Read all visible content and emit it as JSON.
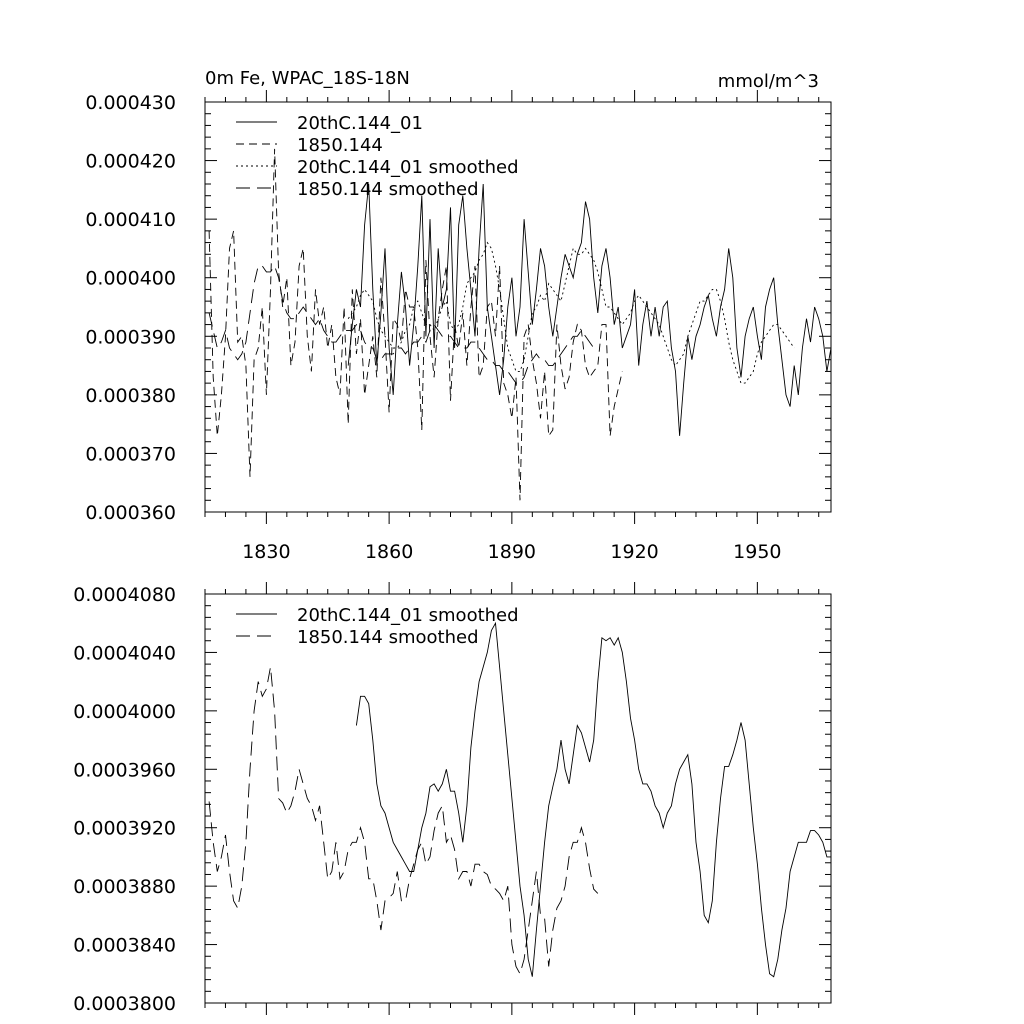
{
  "figure": {
    "background": "#ffffff",
    "line_color": "#000000"
  },
  "chart_data": [
    {
      "type": "line",
      "title_left": "0m Fe, WPAC_18S-18N",
      "title_right": "mmol/m^3",
      "xlabel": "",
      "ylabel": "",
      "xlim": [
        1815,
        1968
      ],
      "ylim": [
        0.00036,
        0.00043
      ],
      "xticks": [
        1830,
        1860,
        1890,
        1920,
        1950
      ],
      "yticks": [
        "0.000360",
        "0.000370",
        "0.000380",
        "0.000390",
        "0.000400",
        "0.000410",
        "0.000420",
        "0.000430"
      ],
      "legend_position": "top-left",
      "grid": false,
      "series": [
        {
          "name": "20thC.144_01",
          "dash": "solid",
          "x_start": 1850,
          "x_step": 1,
          "values": [
            0.000385,
            0.000392,
            0.000398,
            0.000395,
            0.000409,
            0.000416,
            0.000398,
            0.000385,
            0.000394,
            0.000405,
            0.000388,
            0.00038,
            0.000392,
            0.000401,
            0.000395,
            0.000385,
            0.000392,
            0.000402,
            0.000414,
            0.00039,
            0.00041,
            0.000388,
            0.000405,
            0.000395,
            0.000398,
            0.000412,
            0.000388,
            0.000409,
            0.000414,
            0.000405,
            0.000398,
            0.00039,
            0.000405,
            0.000416,
            0.000395,
            0.00039,
            0.000385,
            0.00038,
            0.000386,
            0.000395,
            0.0004,
            0.00039,
            0.000395,
            0.00041,
            0.000401,
            0.000392,
            0.000398,
            0.000405,
            0.000402,
            0.000395,
            0.00039,
            0.000395,
            0.0004,
            0.000404,
            0.000402,
            0.0004,
            0.000404,
            0.000406,
            0.000413,
            0.00041,
            0.0004,
            0.000394,
            0.000402,
            0.000405,
            0.0004,
            0.000392,
            0.000395,
            0.000388,
            0.00039,
            0.000392,
            0.000398,
            0.000385,
            0.000392,
            0.000396,
            0.00039,
            0.000395,
            0.00039,
            0.000395,
            0.000396,
            0.000388,
            0.000384,
            0.000373,
            0.000382,
            0.00039,
            0.000386,
            0.00039,
            0.000392,
            0.000395,
            0.000397,
            0.000393,
            0.00039,
            0.000395,
            0.000398,
            0.000405,
            0.0004,
            0.000388,
            0.000383,
            0.00039,
            0.000393,
            0.000395,
            0.00039,
            0.000386,
            0.000395,
            0.000398,
            0.0004,
            0.000392,
            0.000386,
            0.00038,
            0.000378,
            0.000385,
            0.00038,
            0.000388,
            0.000393,
            0.000389,
            0.000395,
            0.000393,
            0.00039,
            0.000384,
            0.000388
          ]
        },
        {
          "name": "1850.144",
          "dash": "dashed",
          "x_start": 1816,
          "x_step": 1,
          "values": [
            0.000408,
            0.000383,
            0.000373,
            0.00038,
            0.00039,
            0.000405,
            0.000408,
            0.000389,
            0.00039,
            0.000385,
            0.000366,
            0.000386,
            0.000388,
            0.000395,
            0.00038,
            0.000398,
            0.000422,
            0.000401,
            0.000395,
            0.0004,
            0.000385,
            0.000389,
            0.000402,
            0.000405,
            0.00039,
            0.000384,
            0.000398,
            0.000392,
            0.000395,
            0.000388,
            0.000392,
            0.000383,
            0.00038,
            0.000395,
            0.000375,
            0.000398,
            0.000387,
            0.000393,
            0.00038,
            0.000385,
            0.00039,
            0.000383,
            0.0004,
            0.00039,
            0.000377,
            0.000393,
            0.000392,
            0.000389,
            0.000398,
            0.000395,
            0.000395,
            0.000388,
            0.000374,
            0.000403,
            0.00039,
            0.000383,
            0.000393,
            0.000398,
            0.000402,
            0.000379,
            0.000392,
            0.000388,
            0.000394,
            0.000385,
            0.000395,
            0.000402,
            0.000383,
            0.000385,
            0.000395,
            0.000396,
            0.00039,
            0.000402,
            0.000382,
            0.00038,
            0.000376,
            0.000383,
            0.000362,
            0.00039,
            0.000392,
            0.000386,
            0.000382,
            0.000376,
            0.000384,
            0.000373,
            0.000374,
            0.000392,
            0.000385,
            0.000381,
            0.000383,
            0.000389,
            0.000392,
            0.000391,
            0.000385,
            0.000383,
            0.000384,
            0.000385,
            0.000392,
            0.000392,
            0.000373,
            0.000378,
            0.000381,
            0.000384
          ]
        },
        {
          "name": "20thC.144_01 smoothed",
          "dash": "dotted",
          "x_start": 1850,
          "x_step": 1,
          "values": [
            0.000393,
            0.000394,
            0.000395,
            0.000397,
            0.000398,
            0.000397,
            0.000396,
            0.000393,
            0.000391,
            0.00039,
            0.000389,
            0.000388,
            0.000388,
            0.000389,
            0.000391,
            0.000392,
            0.000395,
            0.000396,
            0.000394,
            0.000392,
            0.000392,
            0.000391,
            0.000393,
            0.000395,
            0.000396,
            0.000392,
            0.000391,
            0.000392,
            0.000395,
            0.000399,
            0.0004,
            0.000401,
            0.000403,
            0.000404,
            0.000406,
            0.000405,
            0.000402,
            0.000398,
            0.000393,
            0.000388,
            0.000386,
            0.000384,
            0.000384,
            0.000386,
            0.00039,
            0.000394,
            0.000395,
            0.000397,
            0.000396,
            0.000399,
            0.000398,
            0.000397,
            0.000396,
            0.000399,
            0.000402,
            0.000405,
            0.000404,
            0.000404,
            0.000405,
            0.000404,
            0.000403,
            0.000401,
            0.000398,
            0.000395,
            0.000395,
            0.000394,
            0.000393,
            0.000392,
            0.000393,
            0.000394,
            0.000396,
            0.000397,
            0.000396,
            0.000395,
            0.000394,
            0.000393,
            0.000392,
            0.00039,
            0.000388,
            0.000386,
            0.000385,
            0.000386,
            0.000387,
            0.00039,
            0.000392,
            0.000394,
            0.000396,
            0.000396,
            0.000397,
            0.000398,
            0.000398,
            0.000396,
            0.000393,
            0.000389,
            0.000386,
            0.000384,
            0.000382,
            0.000382,
            0.000383,
            0.000384,
            0.000387,
            0.000389,
            0.00039,
            0.000391,
            0.000392,
            0.000392,
            0.000391,
            0.00039,
            0.000389,
            0.000388
          ]
        },
        {
          "name": "1850.144 smoothed",
          "dash": "longdash",
          "x_start": 1816,
          "x_step": 1,
          "values": [
            0.000394,
            0.000391,
            0.000388,
            0.000389,
            0.000391,
            0.000388,
            0.000387,
            0.000386,
            0.000387,
            0.000389,
            0.000394,
            0.000399,
            0.000402,
            0.000402,
            0.000401,
            0.000401,
            0.000402,
            0.0004,
            0.000396,
            0.000394,
            0.000393,
            0.000393,
            0.000394,
            0.000395,
            0.000394,
            0.000393,
            0.000392,
            0.000393,
            0.000391,
            0.00039,
            0.000389,
            0.000389,
            0.00039,
            0.000391,
            0.000391,
            0.000391,
            0.000392,
            0.000391,
            0.000389,
            0.000388,
            0.000388,
            0.000386,
            0.000386,
            0.000387,
            0.000387,
            0.000387,
            0.000388,
            0.000388,
            0.000387,
            0.000388,
            0.000389,
            0.000389,
            0.00039,
            0.000389,
            0.000391,
            0.000392,
            0.000391,
            0.00039,
            0.00039,
            0.00039,
            0.000389,
            0.000388,
            0.000388,
            0.000388,
            0.000389,
            0.000389,
            0.000388,
            0.000387,
            0.000386,
            0.000386,
            0.000385,
            0.000385,
            0.000384,
            0.000384,
            0.000383,
            0.000382,
            0.000382,
            0.000383,
            0.000385,
            0.000386,
            0.000387,
            0.000386,
            0.000386,
            0.000385,
            0.000385,
            0.000386,
            0.000387,
            0.000388,
            0.000389,
            0.00039,
            0.00039,
            0.000391,
            0.00039,
            0.000389,
            0.000388,
            0.000388
          ]
        }
      ]
    },
    {
      "type": "line",
      "title_left": "",
      "title_right": "",
      "xlabel": "",
      "ylabel": "",
      "xlim": [
        1815,
        1968
      ],
      "ylim": [
        0.00038,
        0.000408
      ],
      "xticks": [
        1830,
        1860,
        1890,
        1920,
        1950
      ],
      "xtick_labels_shown": false,
      "yticks": [
        "0.0003800",
        "0.0003840",
        "0.0003880",
        "0.0003920",
        "0.0003960",
        "0.0004000",
        "0.0004040",
        "0.0004080"
      ],
      "legend_position": "top-left",
      "grid": false,
      "series": [
        {
          "name": "20thC.144_01 smoothed",
          "dash": "solid",
          "x_start": 1852,
          "x_step": 1,
          "values": [
            0.000399,
            0.000401,
            0.000401,
            0.0004005,
            0.000398,
            0.000395,
            0.0003935,
            0.000393,
            0.000392,
            0.000391,
            0.0003905,
            0.00039,
            0.0003895,
            0.000389,
            0.000389,
            0.0003905,
            0.000392,
            0.000393,
            0.0003948,
            0.000395,
            0.0003945,
            0.000395,
            0.000396,
            0.0003945,
            0.0003945,
            0.000393,
            0.000391,
            0.0003935,
            0.0003975,
            0.0004,
            0.000402,
            0.000403,
            0.000404,
            0.0004055,
            0.000406,
            0.000403,
            0.0004,
            0.000397,
            0.000394,
            0.000391,
            0.000388,
            0.000386,
            0.000383,
            0.0003818,
            0.000385,
            0.000388,
            0.000391,
            0.0003935,
            0.0003948,
            0.000396,
            0.000398,
            0.000396,
            0.000395,
            0.000397,
            0.000399,
            0.0003985,
            0.0003975,
            0.0003965,
            0.000398,
            0.000402,
            0.000405,
            0.0004048,
            0.000405,
            0.0004045,
            0.000405,
            0.000404,
            0.000402,
            0.0003995,
            0.000398,
            0.000396,
            0.000395,
            0.000395,
            0.0003945,
            0.0003935,
            0.000393,
            0.000392,
            0.000393,
            0.0003935,
            0.000395,
            0.000396,
            0.0003965,
            0.000397,
            0.000395,
            0.000391,
            0.000389,
            0.000386,
            0.0003855,
            0.000387,
            0.000391,
            0.000394,
            0.0003962,
            0.0003962,
            0.000397,
            0.000398,
            0.0003992,
            0.000398,
            0.000395,
            0.000392,
            0.0003895,
            0.0003865,
            0.000384,
            0.000382,
            0.0003818,
            0.000383,
            0.000385,
            0.0003865,
            0.000389,
            0.00039,
            0.000391,
            0.000391,
            0.000391,
            0.0003918,
            0.0003918,
            0.0003915,
            0.000391,
            0.00039,
            0.00039,
            0.000389,
            0.000388
          ]
        },
        {
          "name": "1850.144 smoothed",
          "dash": "longdash",
          "x_start": 1816,
          "x_step": 1,
          "values": [
            0.0003938,
            0.000391,
            0.000389,
            0.00039,
            0.0003915,
            0.000389,
            0.000387,
            0.0003865,
            0.000388,
            0.000391,
            0.000396,
            0.0004,
            0.000402,
            0.000401,
            0.0004015,
            0.000403,
            0.0004,
            0.000394,
            0.0003937,
            0.000393,
            0.0003935,
            0.0003945,
            0.000396,
            0.000395,
            0.000394,
            0.0003935,
            0.0003925,
            0.0003935,
            0.000391,
            0.0003885,
            0.000389,
            0.000391,
            0.0003885,
            0.000389,
            0.0003905,
            0.000391,
            0.000391,
            0.000392,
            0.000391,
            0.0003885,
            0.0003885,
            0.000387,
            0.000385,
            0.000387,
            0.0003872,
            0.0003875,
            0.000389,
            0.000387,
            0.000387,
            0.0003885,
            0.0003895,
            0.0003905,
            0.000391,
            0.0003895,
            0.00039,
            0.0003918,
            0.000393,
            0.0003935,
            0.000391,
            0.0003915,
            0.0003905,
            0.0003885,
            0.000389,
            0.000389,
            0.000388,
            0.0003895,
            0.0003895,
            0.000389,
            0.0003888,
            0.000388,
            0.0003878,
            0.0003875,
            0.000387,
            0.000388,
            0.000384,
            0.0003825,
            0.000382,
            0.000383,
            0.000385,
            0.000387,
            0.000389,
            0.000386,
            0.0003858,
            0.0003825,
            0.000385,
            0.0003865,
            0.000387,
            0.000388,
            0.00039,
            0.000391,
            0.000391,
            0.000392,
            0.000391,
            0.0003892,
            0.0003878,
            0.0003875
          ]
        }
      ]
    }
  ]
}
